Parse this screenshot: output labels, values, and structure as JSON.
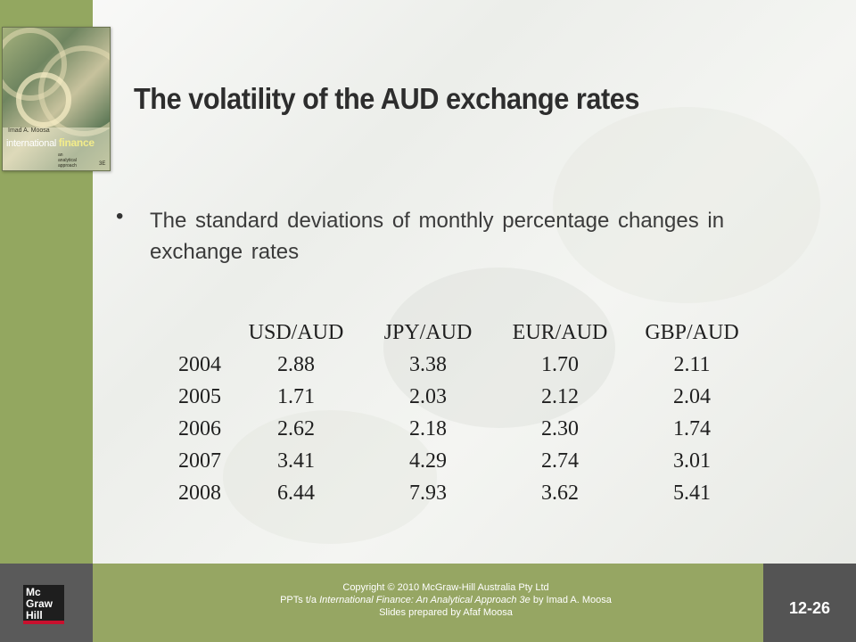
{
  "slide": {
    "title": "The volatility of the AUD exchange rates",
    "bullet_glyph": "•",
    "bullet_text": "The standard deviations of monthly percentage changes in exchange rates"
  },
  "cover": {
    "author": "Imad A. Moosa",
    "title_part1": "international ",
    "title_part2": "finance",
    "subtitle": "an\nanalytical\napproach",
    "edition": "3E"
  },
  "table": {
    "headers": [
      "",
      "USD/AUD",
      "JPY/AUD",
      "EUR/AUD",
      "GBP/AUD"
    ],
    "rows": [
      {
        "year": "2004",
        "values": [
          "2.88",
          "3.38",
          "1.70",
          "2.11"
        ]
      },
      {
        "year": "2005",
        "values": [
          "1.71",
          "2.03",
          "2.12",
          "2.04"
        ]
      },
      {
        "year": "2006",
        "values": [
          "2.62",
          "2.18",
          "2.30",
          "1.74"
        ]
      },
      {
        "year": "2007",
        "values": [
          "3.41",
          "4.29",
          "2.74",
          "3.01"
        ]
      },
      {
        "year": "2008",
        "values": [
          "6.44",
          "7.93",
          "3.62",
          "5.41"
        ]
      }
    ]
  },
  "footer": {
    "logo_lines": [
      "Mc",
      "Graw",
      "Hill"
    ],
    "copyright": "Copyright © 2010 McGraw-Hill Australia Pty Ltd",
    "ppt_prefix": "PPTs t/a ",
    "book_title": "International Finance: An Analytical Approach 3e",
    "ppt_suffix": " by Imad A. Moosa",
    "prepared_by": "Slides prepared by Afaf Moosa",
    "page_number": "12-26"
  },
  "colors": {
    "sidebar_green": "#93a760",
    "footer_green": "#96a663",
    "footer_gray": "#545454"
  }
}
